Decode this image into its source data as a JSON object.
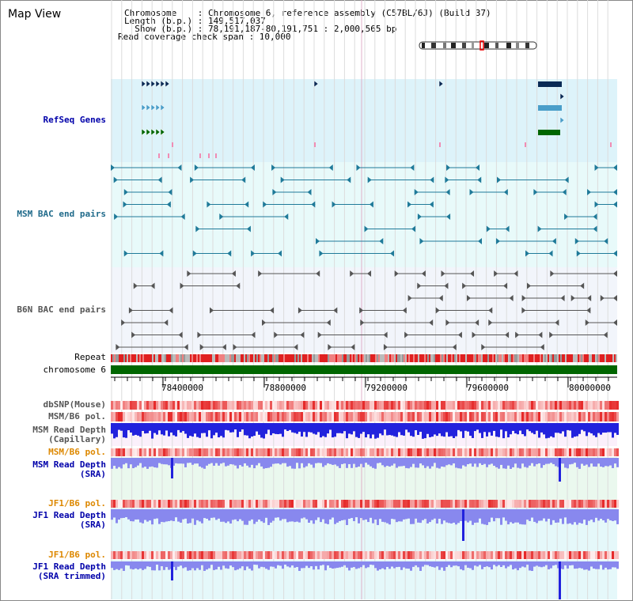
{
  "header": {
    "title": "Map View",
    "chromosome_line": "Chromosome    : Chromosome 6, reference assembly (C57BL/6J) (Build 37)",
    "length_line": "Length (b.p.) : 149,517,037",
    "show_line": "  Show (b.p.) : 78,191,187-80,191,751 : 2,000,565 bp",
    "span_line": "Read coverage check span : 10,000"
  },
  "tracks": {
    "refseq": "RefSeq Genes",
    "msm_bac": "MSM BAC end pairs",
    "b6n_bac": "B6N BAC end pairs",
    "repeat": "Repeat",
    "chromosome": "chromosome 6",
    "dbsnp": "dbSNP(Mouse)",
    "msm_pol": "MSM/B6 pol.",
    "msm_depth_cap_1": "MSM Read Depth",
    "msm_depth_cap_2": "(Capillary)",
    "msm_pol_2": "MSM/B6 pol.",
    "msm_depth_sra_1": "MSM Read Depth",
    "msm_depth_sra_2": "(SRA)",
    "jf1_pol": "JF1/B6 pol.",
    "jf1_depth_1": "JF1 Read Depth",
    "jf1_depth_2": "(SRA)",
    "jf1_pol_2": "JF1/B6 pol.",
    "jf1_trim_1": "JF1 Read Depth",
    "jf1_trim_2": "(SRA trimmed)"
  },
  "axis": {
    "ticks": [
      "78400000",
      "78800000",
      "79200000",
      "79600000",
      "80000000"
    ]
  },
  "colors": {
    "refseq_bg": "#ddf3fa",
    "bac_bg": "#e8fafa",
    "msm_color": "#1f7a99",
    "b6n_color": "#555555",
    "chromosome": "#006600",
    "depth_blue": "#2222dd",
    "depth_light": "#8888ee",
    "label_blue": "#0000aa",
    "label_orange": "#dd8800"
  }
}
